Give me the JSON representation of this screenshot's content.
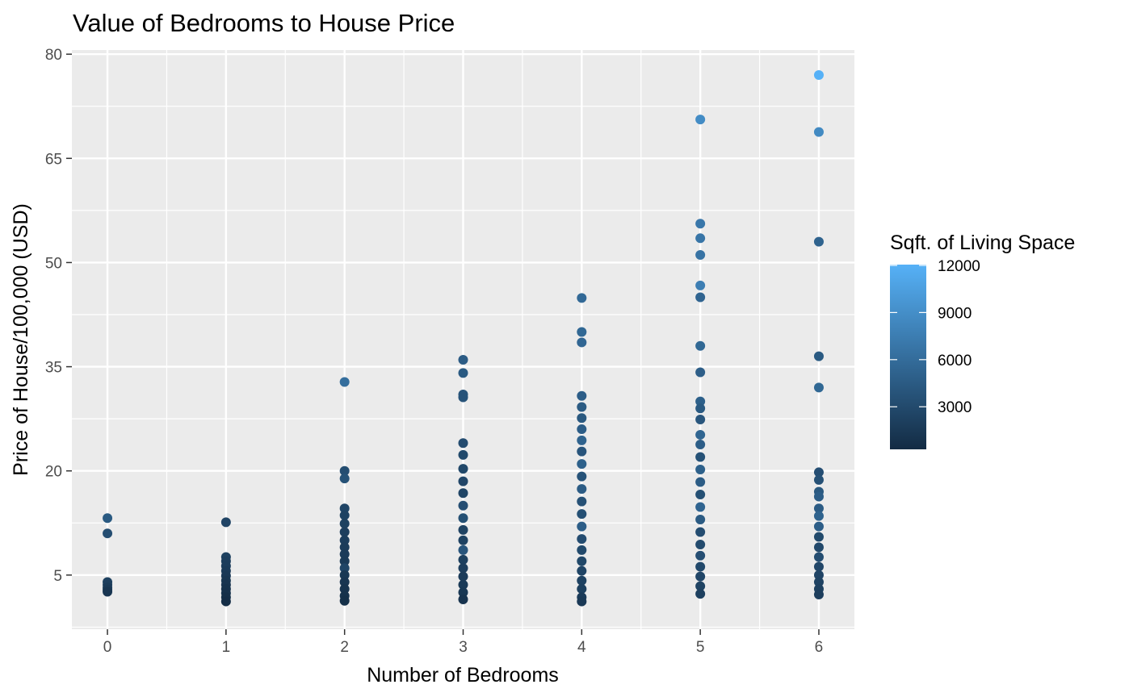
{
  "chart_data": {
    "type": "scatter",
    "title": "Value of Bedrooms to House Price",
    "xlabel": "Number of Bedrooms",
    "ylabel": "Price of House/100,000 (USD)",
    "xlim": [
      -0.3,
      6.3
    ],
    "ylim": [
      -2.8,
      80.6
    ],
    "x_ticks": [
      0,
      1,
      2,
      3,
      4,
      5,
      6
    ],
    "y_ticks": [
      5,
      20,
      35,
      50,
      65,
      80
    ],
    "grid": true,
    "panel_background": "#ebebeb",
    "grid_color": "#ffffff",
    "legend": {
      "title": "Sqft. of Living Space",
      "position": "right",
      "type": "colorbar",
      "range": [
        290,
        12050
      ],
      "ticks": [
        3000,
        6000,
        9000,
        12000
      ],
      "low_color": "#132b43",
      "high_color": "#56b1f7"
    },
    "points": [
      {
        "x": 0,
        "y": 13.2,
        "sqft": 4400
      },
      {
        "x": 0,
        "y": 11.0,
        "sqft": 3300
      },
      {
        "x": 0,
        "y": 4.0,
        "sqft": 2200
      },
      {
        "x": 0,
        "y": 3.6,
        "sqft": 2000
      },
      {
        "x": 0,
        "y": 3.2,
        "sqft": 1700
      },
      {
        "x": 0,
        "y": 2.9,
        "sqft": 1500
      },
      {
        "x": 0,
        "y": 2.6,
        "sqft": 1200
      },
      {
        "x": 1,
        "y": 12.6,
        "sqft": 2500
      },
      {
        "x": 1,
        "y": 7.6,
        "sqft": 2200
      },
      {
        "x": 1,
        "y": 7.0,
        "sqft": 2000
      },
      {
        "x": 1,
        "y": 6.3,
        "sqft": 1900
      },
      {
        "x": 1,
        "y": 5.6,
        "sqft": 1700
      },
      {
        "x": 1,
        "y": 4.9,
        "sqft": 1500
      },
      {
        "x": 1,
        "y": 4.2,
        "sqft": 1300
      },
      {
        "x": 1,
        "y": 3.6,
        "sqft": 1100
      },
      {
        "x": 1,
        "y": 3.0,
        "sqft": 900
      },
      {
        "x": 1,
        "y": 2.4,
        "sqft": 800
      },
      {
        "x": 1,
        "y": 1.8,
        "sqft": 600
      },
      {
        "x": 1,
        "y": 1.2,
        "sqft": 500
      },
      {
        "x": 2,
        "y": 32.8,
        "sqft": 6200
      },
      {
        "x": 2,
        "y": 20.0,
        "sqft": 3300
      },
      {
        "x": 2,
        "y": 18.9,
        "sqft": 3700
      },
      {
        "x": 2,
        "y": 14.6,
        "sqft": 2600
      },
      {
        "x": 2,
        "y": 13.6,
        "sqft": 2300
      },
      {
        "x": 2,
        "y": 12.4,
        "sqft": 2200
      },
      {
        "x": 2,
        "y": 11.2,
        "sqft": 2000
      },
      {
        "x": 2,
        "y": 10.0,
        "sqft": 1900
      },
      {
        "x": 2,
        "y": 9.0,
        "sqft": 1800
      },
      {
        "x": 2,
        "y": 8.0,
        "sqft": 1700
      },
      {
        "x": 2,
        "y": 7.0,
        "sqft": 1600
      },
      {
        "x": 2,
        "y": 6.0,
        "sqft": 2600
      },
      {
        "x": 2,
        "y": 5.0,
        "sqft": 1400
      },
      {
        "x": 2,
        "y": 4.0,
        "sqft": 1200
      },
      {
        "x": 2,
        "y": 3.0,
        "sqft": 1000
      },
      {
        "x": 2,
        "y": 2.0,
        "sqft": 900
      },
      {
        "x": 2,
        "y": 1.3,
        "sqft": 700
      },
      {
        "x": 3,
        "y": 36.0,
        "sqft": 4600
      },
      {
        "x": 3,
        "y": 34.1,
        "sqft": 4400
      },
      {
        "x": 3,
        "y": 31.0,
        "sqft": 3900
      },
      {
        "x": 3,
        "y": 30.6,
        "sqft": 3800
      },
      {
        "x": 3,
        "y": 24.0,
        "sqft": 3200
      },
      {
        "x": 3,
        "y": 22.3,
        "sqft": 3000
      },
      {
        "x": 3,
        "y": 20.3,
        "sqft": 2800
      },
      {
        "x": 3,
        "y": 18.5,
        "sqft": 2700
      },
      {
        "x": 3,
        "y": 16.8,
        "sqft": 2600
      },
      {
        "x": 3,
        "y": 15.0,
        "sqft": 3400
      },
      {
        "x": 3,
        "y": 13.2,
        "sqft": 3500
      },
      {
        "x": 3,
        "y": 11.5,
        "sqft": 2400
      },
      {
        "x": 3,
        "y": 10.0,
        "sqft": 2300
      },
      {
        "x": 3,
        "y": 8.6,
        "sqft": 4000
      },
      {
        "x": 3,
        "y": 7.2,
        "sqft": 2100
      },
      {
        "x": 3,
        "y": 6.0,
        "sqft": 2000
      },
      {
        "x": 3,
        "y": 4.8,
        "sqft": 1800
      },
      {
        "x": 3,
        "y": 3.6,
        "sqft": 1600
      },
      {
        "x": 3,
        "y": 2.5,
        "sqft": 1400
      },
      {
        "x": 3,
        "y": 1.5,
        "sqft": 1100
      },
      {
        "x": 4,
        "y": 44.9,
        "sqft": 5700
      },
      {
        "x": 4,
        "y": 40.0,
        "sqft": 5600
      },
      {
        "x": 4,
        "y": 38.5,
        "sqft": 5500
      },
      {
        "x": 4,
        "y": 30.8,
        "sqft": 4700
      },
      {
        "x": 4,
        "y": 29.2,
        "sqft": 4500
      },
      {
        "x": 4,
        "y": 27.6,
        "sqft": 4300
      },
      {
        "x": 4,
        "y": 26.0,
        "sqft": 4700
      },
      {
        "x": 4,
        "y": 24.4,
        "sqft": 5200
      },
      {
        "x": 4,
        "y": 22.8,
        "sqft": 4000
      },
      {
        "x": 4,
        "y": 21.0,
        "sqft": 5000
      },
      {
        "x": 4,
        "y": 19.2,
        "sqft": 3800
      },
      {
        "x": 4,
        "y": 17.4,
        "sqft": 4600
      },
      {
        "x": 4,
        "y": 15.6,
        "sqft": 3600
      },
      {
        "x": 4,
        "y": 13.8,
        "sqft": 3500
      },
      {
        "x": 4,
        "y": 12.0,
        "sqft": 4800
      },
      {
        "x": 4,
        "y": 10.2,
        "sqft": 3200
      },
      {
        "x": 4,
        "y": 8.6,
        "sqft": 3000
      },
      {
        "x": 4,
        "y": 7.0,
        "sqft": 2800
      },
      {
        "x": 4,
        "y": 5.6,
        "sqft": 2600
      },
      {
        "x": 4,
        "y": 4.2,
        "sqft": 2300
      },
      {
        "x": 4,
        "y": 3.0,
        "sqft": 2100
      },
      {
        "x": 4,
        "y": 1.8,
        "sqft": 1700
      },
      {
        "x": 4,
        "y": 1.2,
        "sqft": 1500
      },
      {
        "x": 5,
        "y": 70.6,
        "sqft": 8800
      },
      {
        "x": 5,
        "y": 55.6,
        "sqft": 7000
      },
      {
        "x": 5,
        "y": 53.5,
        "sqft": 6800
      },
      {
        "x": 5,
        "y": 51.1,
        "sqft": 6600
      },
      {
        "x": 5,
        "y": 46.7,
        "sqft": 7600
      },
      {
        "x": 5,
        "y": 45.0,
        "sqft": 5300
      },
      {
        "x": 5,
        "y": 38.0,
        "sqft": 5600
      },
      {
        "x": 5,
        "y": 34.2,
        "sqft": 4800
      },
      {
        "x": 5,
        "y": 30.0,
        "sqft": 4900
      },
      {
        "x": 5,
        "y": 29.0,
        "sqft": 4400
      },
      {
        "x": 5,
        "y": 27.4,
        "sqft": 4100
      },
      {
        "x": 5,
        "y": 25.2,
        "sqft": 5400
      },
      {
        "x": 5,
        "y": 23.8,
        "sqft": 4700
      },
      {
        "x": 5,
        "y": 22.0,
        "sqft": 3700
      },
      {
        "x": 5,
        "y": 20.2,
        "sqft": 5000
      },
      {
        "x": 5,
        "y": 18.4,
        "sqft": 4600
      },
      {
        "x": 5,
        "y": 16.6,
        "sqft": 3500
      },
      {
        "x": 5,
        "y": 14.8,
        "sqft": 5300
      },
      {
        "x": 5,
        "y": 13.0,
        "sqft": 4500
      },
      {
        "x": 5,
        "y": 11.2,
        "sqft": 3300
      },
      {
        "x": 5,
        "y": 9.4,
        "sqft": 3100
      },
      {
        "x": 5,
        "y": 7.8,
        "sqft": 3400
      },
      {
        "x": 5,
        "y": 6.2,
        "sqft": 2900
      },
      {
        "x": 5,
        "y": 4.8,
        "sqft": 2700
      },
      {
        "x": 5,
        "y": 3.4,
        "sqft": 2400
      },
      {
        "x": 5,
        "y": 2.3,
        "sqft": 2100
      },
      {
        "x": 6,
        "y": 77.0,
        "sqft": 12050
      },
      {
        "x": 6,
        "y": 68.8,
        "sqft": 8600
      },
      {
        "x": 6,
        "y": 53.0,
        "sqft": 5200
      },
      {
        "x": 6,
        "y": 36.5,
        "sqft": 4400
      },
      {
        "x": 6,
        "y": 32.0,
        "sqft": 5600
      },
      {
        "x": 6,
        "y": 19.8,
        "sqft": 3400
      },
      {
        "x": 6,
        "y": 18.7,
        "sqft": 3600
      },
      {
        "x": 6,
        "y": 17.0,
        "sqft": 4300
      },
      {
        "x": 6,
        "y": 16.3,
        "sqft": 4700
      },
      {
        "x": 6,
        "y": 14.6,
        "sqft": 4600
      },
      {
        "x": 6,
        "y": 13.5,
        "sqft": 5200
      },
      {
        "x": 6,
        "y": 12.0,
        "sqft": 4800
      },
      {
        "x": 6,
        "y": 10.5,
        "sqft": 3000
      },
      {
        "x": 6,
        "y": 9.0,
        "sqft": 2900
      },
      {
        "x": 6,
        "y": 7.6,
        "sqft": 3300
      },
      {
        "x": 6,
        "y": 6.2,
        "sqft": 2700
      },
      {
        "x": 6,
        "y": 5.0,
        "sqft": 2500
      },
      {
        "x": 6,
        "y": 4.0,
        "sqft": 2400
      },
      {
        "x": 6,
        "y": 3.0,
        "sqft": 2200
      },
      {
        "x": 6,
        "y": 2.2,
        "sqft": 2000
      }
    ]
  }
}
